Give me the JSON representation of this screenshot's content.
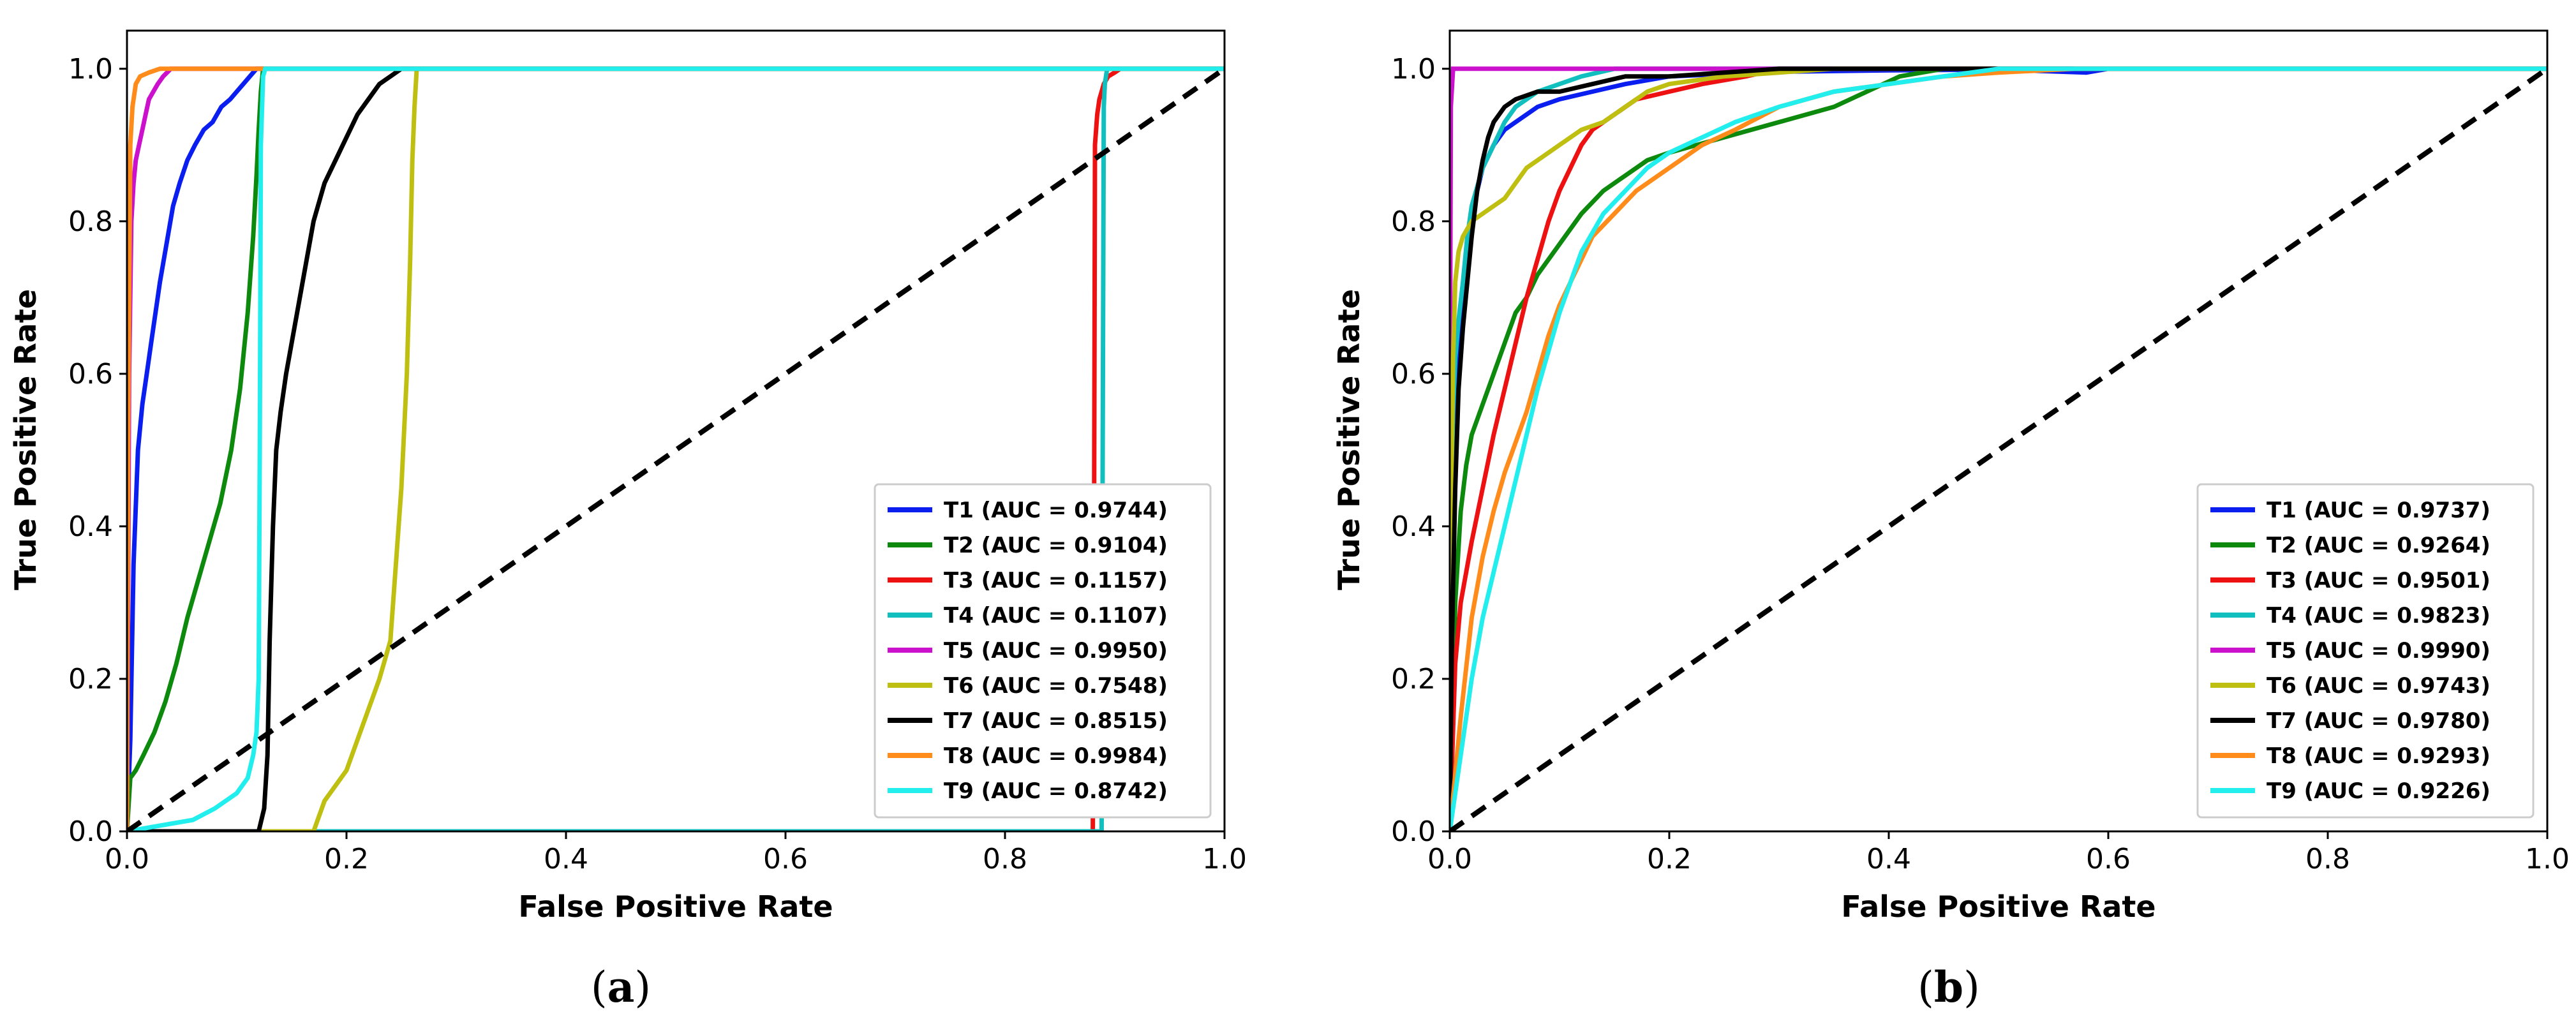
{
  "chart_data": [
    {
      "type": "line",
      "panel": "a",
      "caption_open": "(",
      "caption_letter": "a",
      "caption_close": ")",
      "xlabel": "False Positive Rate",
      "ylabel": "True Positive Rate",
      "xlim": [
        0,
        1
      ],
      "ylim": [
        0,
        1.05
      ],
      "xticks": [
        "0.0",
        "0.2",
        "0.4",
        "0.6",
        "0.8",
        "1.0"
      ],
      "yticks": [
        "0.0",
        "0.2",
        "0.4",
        "0.6",
        "0.8",
        "1.0"
      ],
      "legend_position": "lower-right",
      "diagonal": {
        "x": [
          0,
          1
        ],
        "y": [
          0,
          1
        ],
        "color": "#000000",
        "style": "dashed"
      },
      "series": [
        {
          "name": "T1 (AUC = 0.9744)",
          "color": "#0a1ef0",
          "x": [
            0,
            0.003,
            0.006,
            0.01,
            0.014,
            0.018,
            0.022,
            0.026,
            0.03,
            0.036,
            0.042,
            0.048,
            0.055,
            0.062,
            0.07,
            0.078,
            0.086,
            0.094,
            0.1,
            0.106,
            0.112,
            0.118,
            0.123,
            1.0
          ],
          "y": [
            0,
            0.12,
            0.35,
            0.5,
            0.56,
            0.6,
            0.64,
            0.68,
            0.72,
            0.77,
            0.82,
            0.85,
            0.88,
            0.9,
            0.92,
            0.93,
            0.95,
            0.96,
            0.97,
            0.98,
            0.99,
            1.0,
            1.0,
            1.0
          ]
        },
        {
          "name": "T2 (AUC = 0.9104)",
          "color": "#0d8a0d",
          "x": [
            0,
            0.003,
            0.008,
            0.015,
            0.025,
            0.035,
            0.045,
            0.055,
            0.065,
            0.075,
            0.085,
            0.095,
            0.103,
            0.11,
            0.115,
            0.118,
            0.12,
            0.122,
            0.124,
            0.126,
            1.0
          ],
          "y": [
            0,
            0.07,
            0.08,
            0.1,
            0.13,
            0.17,
            0.22,
            0.28,
            0.33,
            0.38,
            0.43,
            0.5,
            0.58,
            0.68,
            0.78,
            0.86,
            0.92,
            0.97,
            1.0,
            1.0,
            1.0
          ]
        },
        {
          "name": "T3 (AUC = 0.1157)",
          "color": "#ee1111",
          "x": [
            0,
            0.88,
            0.881,
            0.882,
            0.884,
            0.886,
            0.888,
            0.89,
            0.894,
            0.9,
            0.905,
            1.0
          ],
          "y": [
            0,
            0,
            0.3,
            0.9,
            0.94,
            0.96,
            0.97,
            0.98,
            0.99,
            0.995,
            1.0,
            1.0
          ]
        },
        {
          "name": "T4 (AUC = 0.1107)",
          "color": "#11bfbf",
          "x": [
            0,
            0.888,
            0.889,
            0.89,
            0.891,
            0.893,
            1.0
          ],
          "y": [
            0,
            0,
            0.5,
            0.95,
            0.98,
            1.0,
            1.0
          ]
        },
        {
          "name": "T5 (AUC = 0.9950)",
          "color": "#cc11cc",
          "x": [
            0,
            0.002,
            0.004,
            0.006,
            0.008,
            0.011,
            0.014,
            0.017,
            0.02,
            0.024,
            0.028,
            0.033,
            0.04,
            1.0
          ],
          "y": [
            0,
            0.6,
            0.8,
            0.85,
            0.88,
            0.9,
            0.92,
            0.94,
            0.96,
            0.97,
            0.98,
            0.99,
            1.0,
            1.0
          ]
        },
        {
          "name": "T6 (AUC = 0.7548)",
          "color": "#bfbf11",
          "x": [
            0,
            0.17,
            0.175,
            0.18,
            0.19,
            0.2,
            0.21,
            0.22,
            0.23,
            0.24,
            0.245,
            0.25,
            0.255,
            0.258,
            0.26,
            0.262,
            0.264,
            1.0
          ],
          "y": [
            0,
            0,
            0.02,
            0.04,
            0.06,
            0.08,
            0.12,
            0.16,
            0.2,
            0.25,
            0.35,
            0.45,
            0.6,
            0.75,
            0.88,
            0.95,
            1.0,
            1.0
          ]
        },
        {
          "name": "T7 (AUC = 0.8515)",
          "color": "#000000",
          "x": [
            0,
            0.12,
            0.125,
            0.128,
            0.13,
            0.133,
            0.136,
            0.14,
            0.145,
            0.15,
            0.155,
            0.16,
            0.165,
            0.17,
            0.18,
            0.19,
            0.2,
            0.21,
            0.22,
            0.23,
            0.24,
            0.25,
            1.0
          ],
          "y": [
            0,
            0,
            0.03,
            0.1,
            0.25,
            0.4,
            0.5,
            0.55,
            0.6,
            0.64,
            0.68,
            0.72,
            0.76,
            0.8,
            0.85,
            0.88,
            0.91,
            0.94,
            0.96,
            0.98,
            0.99,
            1.0,
            1.0
          ]
        },
        {
          "name": "T8 (AUC = 0.9984)",
          "color": "#ff8c1a",
          "x": [
            0,
            0.001,
            0.003,
            0.005,
            0.008,
            0.012,
            0.02,
            0.03,
            1.0
          ],
          "y": [
            0,
            0.5,
            0.9,
            0.95,
            0.98,
            0.99,
            0.995,
            1.0,
            1.0
          ]
        },
        {
          "name": "T9 (AUC = 0.8742)",
          "color": "#22eeee",
          "x": [
            0,
            0.02,
            0.04,
            0.06,
            0.08,
            0.1,
            0.11,
            0.115,
            0.118,
            0.12,
            0.121,
            0.122,
            0.124,
            0.126,
            1.0
          ],
          "y": [
            0,
            0.005,
            0.01,
            0.015,
            0.03,
            0.05,
            0.07,
            0.1,
            0.13,
            0.2,
            0.5,
            0.9,
            0.99,
            1.0,
            1.0
          ]
        }
      ]
    },
    {
      "type": "line",
      "panel": "b",
      "caption_open": "(",
      "caption_letter": "b",
      "caption_close": ")",
      "xlabel": "False Positive Rate",
      "ylabel": "True Positive Rate",
      "xlim": [
        0,
        1
      ],
      "ylim": [
        0,
        1.05
      ],
      "xticks": [
        "0.0",
        "0.2",
        "0.4",
        "0.6",
        "0.8",
        "1.0"
      ],
      "yticks": [
        "0.0",
        "0.2",
        "0.4",
        "0.6",
        "0.8",
        "1.0"
      ],
      "legend_position": "lower-right",
      "diagonal": {
        "x": [
          0,
          1
        ],
        "y": [
          0,
          1
        ],
        "color": "#000000",
        "style": "dashed"
      },
      "series": [
        {
          "name": "T1 (AUC = 0.9737)",
          "color": "#0a1ef0",
          "x": [
            0,
            0.002,
            0.005,
            0.01,
            0.015,
            0.02,
            0.025,
            0.03,
            0.04,
            0.05,
            0.06,
            0.08,
            0.1,
            0.13,
            0.16,
            0.2,
            0.25,
            0.3,
            0.4,
            0.5,
            0.58,
            0.6,
            1.0
          ],
          "y": [
            0,
            0.3,
            0.55,
            0.68,
            0.75,
            0.8,
            0.84,
            0.87,
            0.9,
            0.92,
            0.93,
            0.95,
            0.96,
            0.97,
            0.98,
            0.99,
            0.993,
            0.996,
            0.998,
            0.999,
            0.995,
            1.0,
            1.0
          ]
        },
        {
          "name": "T2 (AUC = 0.9264)",
          "color": "#0d8a0d",
          "x": [
            0,
            0.005,
            0.01,
            0.015,
            0.02,
            0.03,
            0.04,
            0.05,
            0.06,
            0.07,
            0.08,
            0.1,
            0.12,
            0.14,
            0.16,
            0.18,
            0.2,
            0.25,
            0.3,
            0.35,
            0.38,
            0.41,
            0.45,
            0.5,
            1.0
          ],
          "y": [
            0,
            0.3,
            0.42,
            0.48,
            0.52,
            0.56,
            0.6,
            0.64,
            0.68,
            0.7,
            0.73,
            0.77,
            0.81,
            0.84,
            0.86,
            0.88,
            0.89,
            0.91,
            0.93,
            0.95,
            0.97,
            0.99,
            1.0,
            1.0,
            1.0
          ]
        },
        {
          "name": "T3 (AUC = 0.9501)",
          "color": "#ee1111",
          "x": [
            0,
            0.005,
            0.01,
            0.02,
            0.03,
            0.04,
            0.05,
            0.06,
            0.07,
            0.08,
            0.09,
            0.1,
            0.11,
            0.12,
            0.13,
            0.15,
            0.17,
            0.2,
            0.23,
            0.27,
            0.3,
            1.0
          ],
          "y": [
            0,
            0.22,
            0.3,
            0.38,
            0.45,
            0.52,
            0.58,
            0.64,
            0.7,
            0.75,
            0.8,
            0.84,
            0.87,
            0.9,
            0.92,
            0.94,
            0.96,
            0.97,
            0.98,
            0.99,
            1.0,
            1.0
          ]
        },
        {
          "name": "T4 (AUC = 0.9823)",
          "color": "#11bfbf",
          "x": [
            0,
            0.001,
            0.003,
            0.005,
            0.008,
            0.012,
            0.016,
            0.02,
            0.03,
            0.04,
            0.05,
            0.06,
            0.08,
            0.1,
            0.12,
            0.15,
            1.0
          ],
          "y": [
            0,
            0.4,
            0.55,
            0.62,
            0.67,
            0.72,
            0.78,
            0.82,
            0.87,
            0.9,
            0.93,
            0.95,
            0.97,
            0.98,
            0.99,
            1.0,
            1.0
          ]
        },
        {
          "name": "T5 (AUC = 0.9990)",
          "color": "#cc11cc",
          "x": [
            0,
            0.0,
            0.001,
            0.003,
            1.0
          ],
          "y": [
            0,
            0.5,
            0.95,
            1.0,
            1.0
          ]
        },
        {
          "name": "T6 (AUC = 0.9743)",
          "color": "#bfbf11",
          "x": [
            0,
            0.001,
            0.003,
            0.005,
            0.008,
            0.012,
            0.016,
            0.02,
            0.03,
            0.04,
            0.05,
            0.06,
            0.07,
            0.08,
            0.1,
            0.12,
            0.14,
            0.16,
            0.18,
            0.2,
            0.25,
            0.3,
            0.35,
            1.0
          ],
          "y": [
            0,
            0.4,
            0.62,
            0.72,
            0.76,
            0.78,
            0.79,
            0.8,
            0.81,
            0.82,
            0.83,
            0.85,
            0.87,
            0.88,
            0.9,
            0.92,
            0.93,
            0.95,
            0.97,
            0.98,
            0.99,
            0.995,
            1.0,
            1.0
          ]
        },
        {
          "name": "T7 (AUC = 0.9780)",
          "color": "#000000",
          "x": [
            0,
            0.002,
            0.005,
            0.008,
            0.012,
            0.016,
            0.02,
            0.025,
            0.03,
            0.035,
            0.04,
            0.05,
            0.06,
            0.08,
            0.1,
            0.13,
            0.16,
            0.2,
            0.25,
            0.3,
            1.0
          ],
          "y": [
            0,
            0.25,
            0.45,
            0.58,
            0.66,
            0.72,
            0.78,
            0.84,
            0.88,
            0.91,
            0.93,
            0.95,
            0.96,
            0.97,
            0.97,
            0.98,
            0.99,
            0.99,
            0.995,
            1.0,
            1.0
          ]
        },
        {
          "name": "T8 (AUC = 0.9293)",
          "color": "#ff8c1a",
          "x": [
            0,
            0.01,
            0.02,
            0.03,
            0.04,
            0.05,
            0.06,
            0.07,
            0.08,
            0.09,
            0.1,
            0.11,
            0.12,
            0.13,
            0.15,
            0.17,
            0.2,
            0.23,
            0.26,
            0.3,
            0.35,
            0.4,
            0.45,
            0.5,
            0.57,
            1.0
          ],
          "y": [
            0,
            0.15,
            0.28,
            0.36,
            0.42,
            0.47,
            0.51,
            0.55,
            0.6,
            0.65,
            0.69,
            0.72,
            0.75,
            0.78,
            0.81,
            0.84,
            0.87,
            0.9,
            0.92,
            0.95,
            0.97,
            0.98,
            0.99,
            0.995,
            1.0,
            1.0
          ]
        },
        {
          "name": "T9 (AUC = 0.9226)",
          "color": "#22eeee",
          "x": [
            0,
            0.01,
            0.02,
            0.03,
            0.04,
            0.05,
            0.06,
            0.07,
            0.08,
            0.09,
            0.1,
            0.11,
            0.12,
            0.14,
            0.16,
            0.18,
            0.2,
            0.23,
            0.26,
            0.3,
            0.35,
            0.4,
            0.45,
            0.5,
            1.0
          ],
          "y": [
            0,
            0.1,
            0.2,
            0.28,
            0.34,
            0.4,
            0.46,
            0.52,
            0.58,
            0.63,
            0.68,
            0.72,
            0.76,
            0.81,
            0.84,
            0.87,
            0.89,
            0.91,
            0.93,
            0.95,
            0.97,
            0.98,
            0.99,
            1.0,
            1.0
          ]
        }
      ]
    }
  ]
}
